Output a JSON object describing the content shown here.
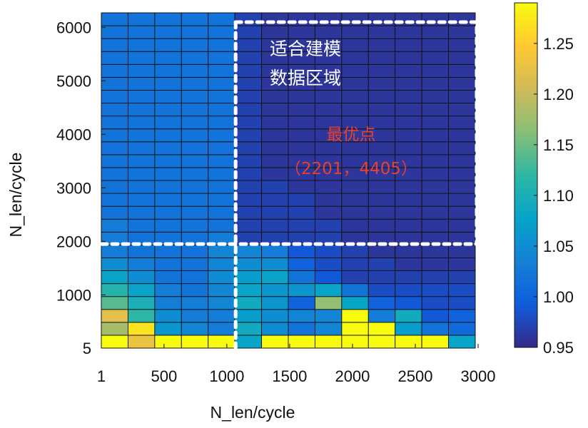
{
  "chart_data": {
    "type": "heatmap",
    "xlabel": "N_len/cycle",
    "ylabel": "N_len/cycle",
    "x_ticks": [
      {
        "value": 1,
        "label": "1"
      },
      {
        "value": 500,
        "label": "500"
      },
      {
        "value": 1000,
        "label": "1000"
      },
      {
        "value": 1500,
        "label": "1500"
      },
      {
        "value": 2000,
        "label": "2000"
      },
      {
        "value": 2500,
        "label": "2500"
      },
      {
        "value": 3000,
        "label": "3000"
      }
    ],
    "y_ticks": [
      {
        "value": 5,
        "label": "5"
      },
      {
        "value": 1000,
        "label": "1000"
      },
      {
        "value": 2000,
        "label": "2000"
      },
      {
        "value": 3000,
        "label": "3000"
      },
      {
        "value": 4000,
        "label": "4000"
      },
      {
        "value": 5000,
        "label": "5000"
      },
      {
        "value": 6000,
        "label": "6000"
      }
    ],
    "xlim": [
      1,
      3000
    ],
    "ylim": [
      5,
      6000
    ],
    "n_cols": 14,
    "n_rows": 26,
    "colorbar": {
      "range": [
        0.95,
        1.29
      ],
      "ticks": [
        "0.95",
        "1.00",
        "1.05",
        "1.10",
        "1.15",
        "1.20",
        "1.25"
      ],
      "colormap": [
        "#352a87",
        "#0f5cdd",
        "#1481d6",
        "#06a4ca",
        "#2eb7a4",
        "#87bf77",
        "#d1bb59",
        "#fec832",
        "#f9fb0e"
      ]
    },
    "values_bottom_to_top": [
      [
        1.29,
        1.23,
        1.29,
        1.29,
        1.29,
        1.08,
        1.29,
        1.29,
        1.29,
        1.29,
        1.29,
        1.29,
        1.29,
        1.08
      ],
      [
        1.18,
        1.27,
        1.06,
        1.04,
        1.03,
        1.09,
        1.05,
        1.02,
        1.04,
        1.29,
        1.29,
        1.07,
        1.02,
        1.01
      ],
      [
        1.22,
        1.12,
        1.05,
        1.03,
        1.03,
        1.07,
        1.05,
        1.04,
        1.04,
        1.29,
        1.03,
        1.09,
        0.99,
        1.0
      ],
      [
        1.14,
        1.1,
        1.03,
        1.03,
        1.04,
        1.09,
        1.06,
        1.0,
        1.17,
        1.08,
        1.0,
        0.99,
        0.98,
        0.98
      ],
      [
        1.11,
        1.08,
        1.03,
        1.02,
        1.04,
        1.08,
        1.06,
        1.06,
        1.08,
        1.02,
        0.98,
        0.98,
        0.98,
        0.98
      ],
      [
        1.08,
        1.05,
        1.02,
        1.02,
        1.05,
        1.07,
        1.08,
        1.02,
        0.99,
        0.97,
        0.97,
        0.97,
        0.97,
        0.97
      ],
      [
        1.05,
        1.03,
        1.02,
        1.02,
        1.04,
        1.05,
        1.05,
        1.0,
        0.98,
        0.97,
        0.97,
        0.96,
        0.96,
        0.96
      ],
      [
        1.03,
        1.02,
        1.02,
        1.02,
        1.04,
        1.04,
        1.03,
        0.99,
        0.98,
        0.97,
        0.96,
        0.96,
        0.96,
        0.96
      ],
      [
        1.03,
        1.02,
        1.02,
        1.02,
        1.03,
        0.97,
        0.97,
        0.97,
        0.97,
        0.96,
        0.96,
        0.96,
        0.96,
        0.96
      ],
      [
        1.03,
        1.02,
        1.02,
        1.02,
        1.02,
        0.97,
        0.97,
        0.97,
        0.97,
        0.96,
        0.96,
        0.96,
        0.96,
        0.96
      ],
      [
        1.02,
        1.02,
        1.02,
        1.02,
        1.02,
        0.97,
        0.97,
        0.97,
        0.96,
        0.96,
        0.96,
        0.96,
        0.96,
        0.96
      ],
      [
        1.02,
        1.02,
        1.02,
        1.02,
        1.02,
        0.97,
        0.97,
        0.97,
        0.96,
        0.96,
        0.96,
        0.96,
        0.96,
        0.96
      ],
      [
        1.02,
        1.02,
        1.02,
        1.02,
        1.02,
        0.97,
        0.97,
        0.96,
        0.96,
        0.96,
        0.96,
        0.96,
        0.96,
        0.96
      ],
      [
        1.02,
        1.02,
        1.02,
        1.02,
        1.02,
        0.97,
        0.96,
        0.96,
        0.96,
        0.96,
        0.96,
        0.96,
        0.96,
        0.96
      ],
      [
        1.02,
        1.02,
        1.02,
        1.02,
        1.02,
        0.97,
        0.96,
        0.96,
        0.96,
        0.96,
        0.96,
        0.96,
        0.96,
        0.96
      ],
      [
        1.02,
        1.02,
        1.02,
        1.02,
        1.02,
        0.97,
        0.96,
        0.96,
        0.96,
        0.96,
        0.96,
        0.96,
        0.96,
        0.96
      ],
      [
        1.02,
        1.02,
        1.02,
        1.02,
        1.02,
        0.97,
        0.96,
        0.96,
        0.96,
        0.96,
        0.96,
        0.96,
        0.96,
        0.96
      ],
      [
        1.02,
        1.02,
        1.02,
        1.02,
        1.02,
        0.97,
        0.96,
        0.96,
        0.96,
        0.96,
        0.96,
        0.96,
        0.96,
        0.96
      ],
      [
        1.02,
        1.02,
        1.02,
        1.02,
        1.02,
        0.97,
        0.96,
        0.96,
        0.96,
        0.96,
        0.96,
        0.96,
        0.96,
        0.96
      ],
      [
        1.02,
        1.02,
        1.02,
        1.02,
        1.02,
        0.97,
        0.96,
        0.96,
        0.96,
        0.96,
        0.96,
        0.96,
        0.96,
        0.96
      ],
      [
        1.02,
        1.02,
        1.02,
        1.02,
        1.02,
        0.97,
        0.96,
        0.96,
        0.96,
        0.96,
        0.96,
        0.96,
        0.96,
        0.96
      ],
      [
        1.02,
        1.02,
        1.02,
        1.02,
        1.02,
        0.97,
        0.96,
        0.96,
        0.96,
        0.96,
        0.96,
        0.96,
        0.96,
        0.96
      ],
      [
        1.02,
        1.02,
        1.02,
        1.02,
        1.02,
        0.97,
        0.96,
        0.96,
        0.96,
        0.96,
        0.96,
        0.96,
        0.96,
        0.96
      ],
      [
        1.02,
        1.02,
        1.02,
        1.02,
        1.02,
        0.97,
        0.96,
        0.96,
        0.96,
        0.96,
        0.96,
        0.96,
        0.96,
        0.96
      ],
      [
        1.02,
        1.02,
        1.02,
        1.02,
        1.02,
        0.97,
        0.96,
        0.96,
        0.96,
        0.96,
        0.96,
        0.96,
        0.96,
        0.96
      ],
      [
        1.02,
        1.02,
        1.02,
        1.02,
        1.02,
        0.97,
        0.96,
        0.96,
        0.96,
        0.96,
        0.96,
        0.96,
        0.96,
        0.96
      ]
    ],
    "annotations": {
      "region_label_line1": "适合建模",
      "region_label_line2": "数据区域",
      "optimum_label": "最优点",
      "optimum_coords": "（2201，4405）"
    },
    "region_box": {
      "x_from": 1070,
      "x_to": 3000,
      "y_from": 1950,
      "y_to": 6150
    },
    "boundary_lines": {
      "vertical_x": 1070,
      "horizontal_y": 1950
    }
  }
}
